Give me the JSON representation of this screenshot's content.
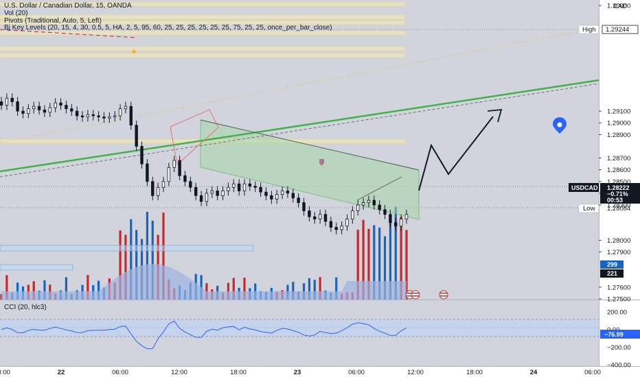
{
  "header": {
    "symbol_line": "U.S. Dollar / Canadian Dollar, 15, OANDA",
    "vol_line": "Vol (20)",
    "pivots_line": "Pivots (Traditional, Auto, 5, Left)",
    "keylevels_line": "Bj Key Levels (20, 15, 4, 30, 0.5, 5, HA, 2, 5, 95, 60, 25, 25, 25, 25, 25, 25, 75, 25, 25, once_per_bar_close)"
  },
  "cci": {
    "label": "CCI (20, hlc3)",
    "value_badge": "−76.99"
  },
  "price_axis": {
    "currency": "CAD",
    "high_label": "High",
    "high_value": "1.29244",
    "low_label": "Low",
    "low_value": "1.28084",
    "symbol_badge": "USDCAD",
    "last_price": "1.28222",
    "change_pct": "−0.71%",
    "countdown": "00:53",
    "vol_badge_1": "299",
    "vol_badge_2": "221"
  },
  "colors": {
    "up": "#131722",
    "down": "#131722",
    "trend_green": "#43b04a",
    "channel_fill": "#a5d6a7",
    "vol_up": "#c62828",
    "vol_down": "#1565c0",
    "vol_ma": "#9fb4e0",
    "cci_line": "#2962ff",
    "background": "#d1d4dc"
  },
  "chart_data": {
    "type": "candlestick",
    "title": "U.S. Dollar / Canadian Dollar, 15, OANDA",
    "price_range": [
      1.275,
      1.3
    ],
    "price_ticks": [
      "1.30000",
      "1.29244",
      "1.29100",
      "1.29000",
      "1.28900",
      "1.28700",
      "1.28600",
      "1.28500",
      "1.28400",
      "1.28300",
      "1.28222",
      "1.28000",
      "1.27900",
      "1.27600",
      "1.27500"
    ],
    "time_ticks": [
      "18:00",
      "22",
      "06:00",
      "12:00",
      "18:00",
      "23",
      "06:00",
      "12:00",
      "18:00",
      "24",
      "06:00"
    ],
    "cci_ticks": [
      "200.00",
      "0.00",
      "−200.00",
      "−400.00"
    ],
    "cci_range": [
      -400,
      300
    ],
    "close_series": [
      1.2915,
      1.2921,
      1.2918,
      1.291,
      1.2908,
      1.2912,
      1.2914,
      1.2911,
      1.2909,
      1.2913,
      1.2917,
      1.2915,
      1.2912,
      1.291,
      1.2906,
      1.2905,
      1.2907,
      1.2906,
      1.2905,
      1.2904,
      1.2905,
      1.2906,
      1.2912,
      1.2914,
      1.2898,
      1.288,
      1.2865,
      1.285,
      1.2838,
      1.2845,
      1.285,
      1.2862,
      1.2868,
      1.2855,
      1.285,
      1.2845,
      1.2838,
      1.2833,
      1.284,
      1.2842,
      1.2838,
      1.2842,
      1.2845,
      1.2848,
      1.2842,
      1.2848,
      1.2846,
      1.2845,
      1.2841,
      1.2838,
      1.2835,
      1.2839,
      1.2842,
      1.284,
      1.2836,
      1.2832,
      1.2825,
      1.282,
      1.2818,
      1.2822,
      1.2816,
      1.2811,
      1.2809,
      1.2812,
      1.2818,
      1.2825,
      1.283,
      1.2832,
      1.2834,
      1.283,
      1.2826,
      1.2822,
      1.2815,
      1.2812,
      1.2818,
      1.2822
    ],
    "projection": [
      1.2825,
      1.285,
      1.283,
      1.286,
      1.2875
    ]
  }
}
